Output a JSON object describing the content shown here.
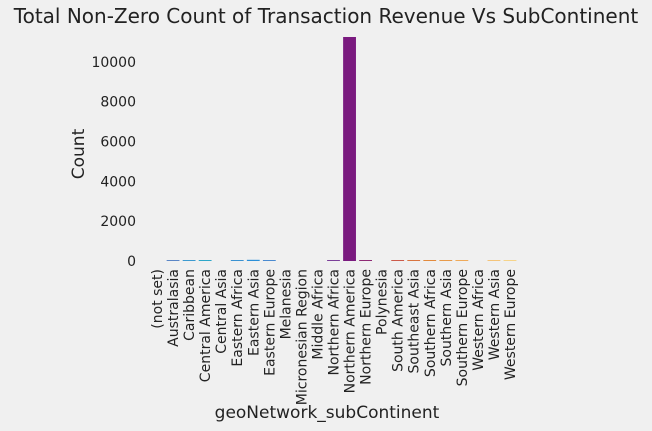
{
  "chart_data": {
    "type": "bar",
    "title": "Total Non-Zero Count of Transaction Revenue Vs SubContinent",
    "xlabel": "geoNetwork_subContinent",
    "ylabel": "Count",
    "ylim": [
      0,
      11300
    ],
    "yticks": [
      0,
      2000,
      4000,
      6000,
      8000,
      10000
    ],
    "grid": false,
    "categories": [
      "(not set)",
      "Australasia",
      "Caribbean",
      "Central America",
      "Central Asia",
      "Eastern Africa",
      "Eastern Asia",
      "Eastern Europe",
      "Melanesia",
      "Micronesian Region",
      "Middle Africa",
      "Northern Africa",
      "Northern America",
      "Northern Europe",
      "Polynesia",
      "South America",
      "Southeast Asia",
      "Southern Africa",
      "Southern Asia",
      "Southern Europe",
      "Western Africa",
      "Western Asia",
      "Western Europe"
    ],
    "values": [
      0,
      1,
      1,
      1,
      0,
      1,
      60,
      1,
      0,
      0,
      0,
      1,
      11250,
      1,
      0,
      50,
      1,
      1,
      1,
      1,
      0,
      1,
      1
    ],
    "colors": [
      "#4b6fb5",
      "#5a86c6",
      "#3c9ad0",
      "#2ea7c9",
      "#2f9fcb",
      "#3a92d1",
      "#2b8fd8",
      "#4a8ad0",
      "#5a7fc8",
      "#6a72c0",
      "#7a62b6",
      "#7b3f99",
      "#7a1a7f",
      "#8e2a74",
      "#a84068",
      "#cc5a4a",
      "#d8743f",
      "#e28a3c",
      "#e89b4a",
      "#efaa5a",
      "#f2b66a",
      "#f4c47a",
      "#f6d48a"
    ]
  }
}
